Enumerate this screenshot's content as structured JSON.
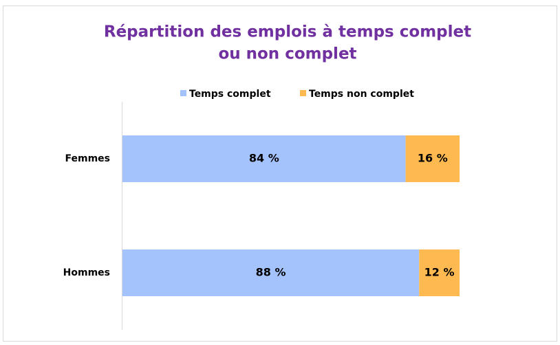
{
  "chart_data": {
    "type": "bar",
    "orientation": "horizontal",
    "stacked": true,
    "title": [
      "Répartition des emplois à temps complet",
      "ou non complet"
    ],
    "categories": [
      "Femmes",
      "Hommes"
    ],
    "series": [
      {
        "name": "Temps complet",
        "color": "#a4c2fc",
        "values": [
          84,
          88
        ],
        "value_labels": [
          "84 %",
          "88 %"
        ]
      },
      {
        "name": "Temps non complet",
        "color": "#ffb951",
        "values": [
          16,
          12
        ],
        "value_labels": [
          "16 %",
          "12 %"
        ]
      }
    ],
    "legend": "top"
  }
}
